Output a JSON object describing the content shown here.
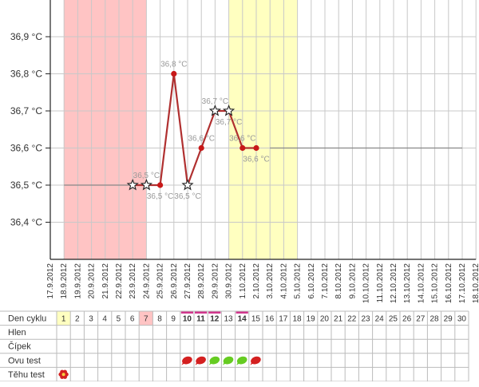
{
  "chart_data": {
    "type": "line",
    "ylim": [
      36.3,
      37.0
    ],
    "yticks": [
      "36,4 °C",
      "36,5 °C",
      "36,6 °C",
      "36,7 °C",
      "36,8 °C",
      "36,9 °C"
    ],
    "ytick_values": [
      36.4,
      36.5,
      36.6,
      36.7,
      36.8,
      36.9
    ],
    "x_dates": [
      "17.9.2012",
      "18.9.2012",
      "19.9.2012",
      "20.9.2012",
      "21.9.2012",
      "22.9.2012",
      "23.9.2012",
      "24.9.2012",
      "25.9.2012",
      "26.9.2012",
      "27.9.2012",
      "28.9.2012",
      "29.9.2012",
      "30.9.2012",
      "1.10.2012",
      "2.10.2012",
      "3.10.2012",
      "4.10.2012",
      "5.10.2012",
      "6.10.2012",
      "7.10.2012",
      "8.10.2012",
      "9.10.2012",
      "10.10.2012",
      "11.10.2012",
      "12.10.2012",
      "13.10.2012",
      "14.10.2012",
      "15.10.2012",
      "16.10.2012",
      "17.10.2012",
      "18.10.2012"
    ],
    "shaded_ranges": [
      {
        "from": "18.9.2012",
        "to": "24.9.2012",
        "color": "#ffc4c4"
      },
      {
        "from": "30.9.2012",
        "to": "5.10.2012",
        "color": "#ffffc0"
      }
    ],
    "baseline_before": {
      "from": "18.9.2012",
      "to": "23.9.2012",
      "value": 36.5
    },
    "baseline_after": {
      "from": "3.10.2012",
      "to": "17.10.2012",
      "value": 36.6
    },
    "series": [
      {
        "color": "#b03030",
        "points": [
          {
            "date": "23.9.2012",
            "value": 36.5,
            "marker": "star",
            "label": ""
          },
          {
            "date": "24.9.2012",
            "value": 36.5,
            "marker": "star",
            "label": "36,5 °C",
            "label_pos": "above"
          },
          {
            "date": "25.9.2012",
            "value": 36.5,
            "marker": "dot",
            "label": "36,5 °C",
            "label_pos": "below"
          },
          {
            "date": "26.9.2012",
            "value": 36.8,
            "marker": "dot",
            "label": "36,8 °C",
            "label_pos": "above"
          },
          {
            "date": "27.9.2012",
            "value": 36.5,
            "marker": "star",
            "label": "36,5 °C",
            "label_pos": "below"
          },
          {
            "date": "28.9.2012",
            "value": 36.6,
            "marker": "dot",
            "label": "36,6 °C",
            "label_pos": "above"
          },
          {
            "date": "29.9.2012",
            "value": 36.7,
            "marker": "star",
            "label": "36,7 °C",
            "label_pos": "above"
          },
          {
            "date": "30.9.2012",
            "value": 36.7,
            "marker": "star",
            "label": "36,7 °C",
            "label_pos": "below"
          },
          {
            "date": "1.10.2012",
            "value": 36.6,
            "marker": "dot",
            "label": "36,6 °C",
            "label_pos": "above"
          },
          {
            "date": "2.10.2012",
            "value": 36.6,
            "marker": "dot",
            "label": "36,6 °C",
            "label_pos": "below"
          }
        ]
      }
    ]
  },
  "cycle_table": {
    "rows": [
      "Den cyklu",
      "Hlen",
      "Čípek",
      "Ovu test",
      "Těhu test"
    ],
    "days": [
      "1",
      "2",
      "3",
      "4",
      "5",
      "6",
      "7",
      "8",
      "9",
      "10",
      "11",
      "12",
      "13",
      "14",
      "15",
      "16",
      "17",
      "18",
      "19",
      "20",
      "21",
      "22",
      "23",
      "24",
      "25",
      "26",
      "27",
      "28",
      "29",
      "30"
    ],
    "day_highlights": {
      "1": "#ffffc0",
      "7": "#ffc4c4"
    },
    "underlined_days": [
      "10",
      "11",
      "12",
      "14"
    ],
    "underline_color": "#d0308a",
    "ovu_tests": [
      {
        "day": "10",
        "result": "red-icon"
      },
      {
        "day": "11",
        "result": "red-icon"
      },
      {
        "day": "12",
        "result": "green-icon"
      },
      {
        "day": "13",
        "result": "green-icon"
      },
      {
        "day": "14",
        "result": "green-icon"
      },
      {
        "day": "15",
        "result": "red-icon"
      }
    ],
    "pregnancy_test": {
      "day": "1",
      "icon": "red-flower-icon"
    },
    "colors": {
      "red": "#d42020",
      "green": "#66cc22"
    }
  }
}
